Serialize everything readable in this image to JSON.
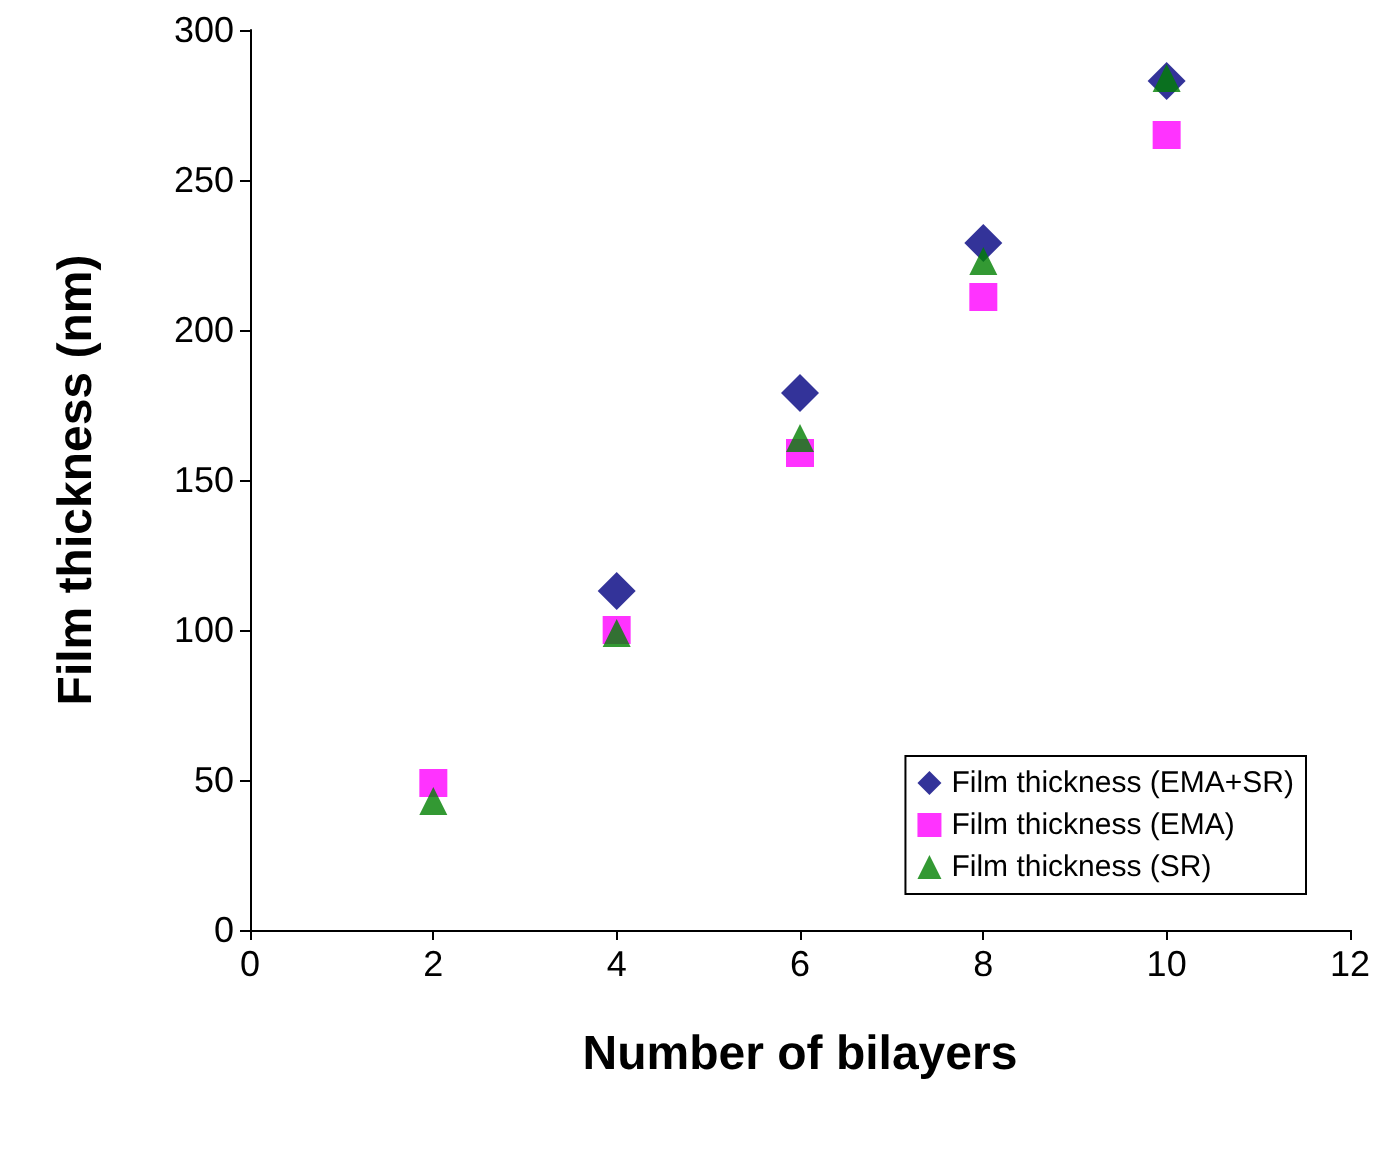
{
  "chart_data": {
    "type": "scatter",
    "xlabel": "Number of bilayers",
    "ylabel": "Film thickness (nm)",
    "x": [
      2,
      4,
      6,
      8,
      10
    ],
    "series": [
      {
        "name": "Film thickness (EMA+SR)",
        "color": "#000080",
        "marker": "diamond",
        "values": [
          null,
          113,
          179,
          229,
          283
        ]
      },
      {
        "name": "Film thickness (EMA)",
        "color": "#ff00ff",
        "marker": "square",
        "values": [
          49,
          100,
          159,
          211,
          265
        ]
      },
      {
        "name": "Film thickness (SR)",
        "color": "#008000",
        "marker": "triangle",
        "values": [
          43,
          99,
          164,
          223,
          284
        ]
      }
    ],
    "xlim": [
      0,
      12
    ],
    "xticks": [
      0,
      2,
      4,
      6,
      8,
      10,
      12
    ],
    "ylim": [
      0,
      300
    ],
    "yticks": [
      0,
      50,
      100,
      150,
      200,
      250,
      300
    ],
    "grid": false,
    "legend": "bottom right"
  }
}
